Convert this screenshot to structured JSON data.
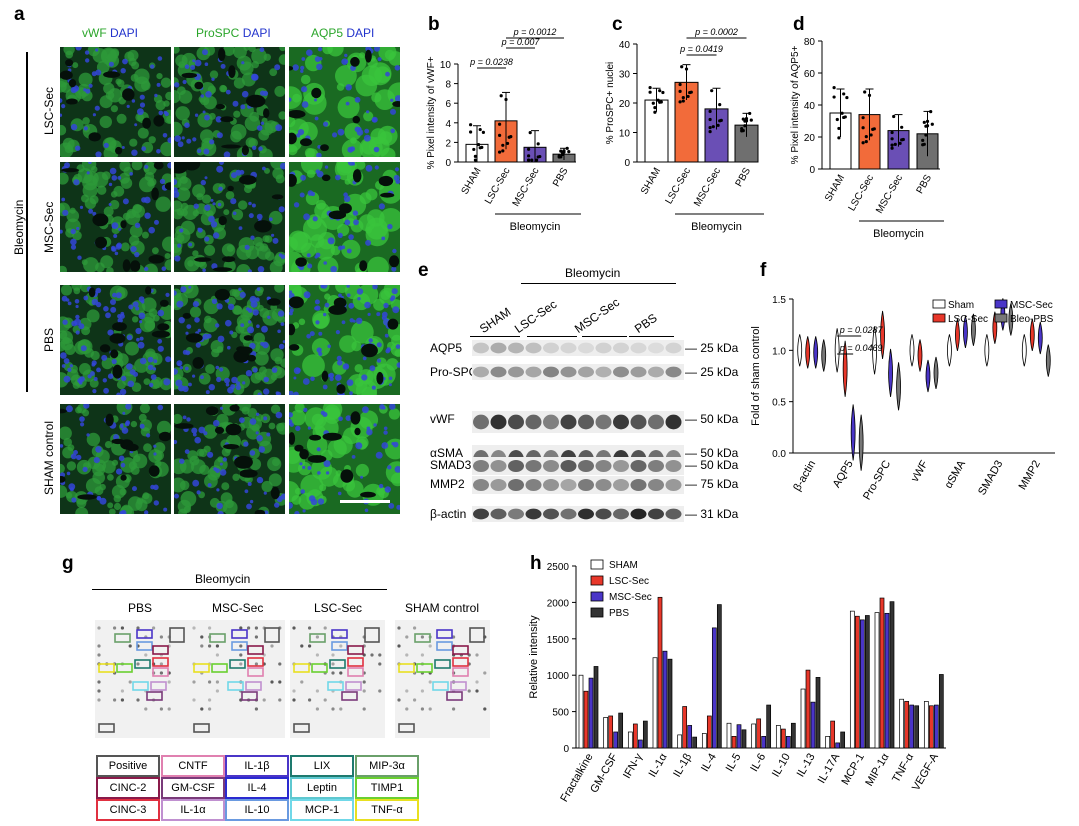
{
  "panel_letters": {
    "a": "a",
    "b": "b",
    "c": "c",
    "d": "d",
    "e": "e",
    "f": "f",
    "g": "g",
    "h": "h"
  },
  "panel_a": {
    "col_titles": [
      {
        "marker": "vWF",
        "dapi": "DAPI",
        "marker_color": "#2aa52a",
        "dapi_color": "#2233cc"
      },
      {
        "marker": "ProSPC",
        "dapi": "DAPI",
        "marker_color": "#2aa52a",
        "dapi_color": "#2233cc"
      },
      {
        "marker": "AQP5",
        "dapi": "DAPI",
        "marker_color": "#2aa52a",
        "dapi_color": "#2233cc"
      }
    ],
    "rows": [
      "LSC-Sec",
      "MSC-Sec",
      "PBS",
      "SHAM control"
    ],
    "group_label": "Bleomycin"
  },
  "chart_data": [
    {
      "id": "b",
      "type": "bar",
      "ylabel": "% Pixel intensity of vWF+",
      "categories": [
        "SHAM",
        "LSC-Sec",
        "MSC-Sec",
        "PBS"
      ],
      "values": [
        1.8,
        4.2,
        1.5,
        0.8
      ],
      "errors": [
        1.9,
        2.9,
        1.7,
        0.6
      ],
      "colors": [
        "#ffffff",
        "#f26b3a",
        "#6a4fb5",
        "#6f6f6f"
      ],
      "ylim": [
        0,
        10
      ],
      "yticks": [
        "0",
        "2",
        "4",
        "6",
        "8",
        "10"
      ],
      "group_label": "Bleomycin",
      "pvalues": [
        {
          "text": "p = 0.0238",
          "from": 0,
          "to": 1
        },
        {
          "text": "p = 0.007",
          "from": 1,
          "to": 2
        },
        {
          "text": "p = 0.0012",
          "from": 1,
          "to": 3
        }
      ]
    },
    {
      "id": "c",
      "type": "bar",
      "ylabel": "% ProSPC+ nuclei",
      "categories": [
        "SHAM",
        "LSC-Sec",
        "MSC-Sec",
        "PBS"
      ],
      "values": [
        21,
        27,
        18,
        12.5
      ],
      "errors": [
        4,
        6,
        7,
        4
      ],
      "colors": [
        "#ffffff",
        "#f26b3a",
        "#6a4fb5",
        "#6f6f6f"
      ],
      "ylim": [
        0,
        40
      ],
      "yticks": [
        "0",
        "10",
        "20",
        "30",
        "40"
      ],
      "group_label": "Bleomycin",
      "pvalues": [
        {
          "text": "p = 0.0419",
          "from": 1,
          "to": 2
        },
        {
          "text": "p = 0.0002",
          "from": 1,
          "to": 3
        }
      ]
    },
    {
      "id": "d",
      "type": "bar",
      "ylabel": "% Pixel intensity of AQP5+",
      "categories": [
        "SHAM",
        "LSC-Sec",
        "MSC-Sec",
        "PBS"
      ],
      "values": [
        35,
        34,
        24,
        22
      ],
      "errors": [
        15,
        16,
        10,
        14
      ],
      "colors": [
        "#ffffff",
        "#f26b3a",
        "#6a4fb5",
        "#6f6f6f"
      ],
      "ylim": [
        0,
        80
      ],
      "yticks": [
        "0",
        "20",
        "40",
        "60",
        "80"
      ],
      "group_label": "Bleomycin",
      "pvalues": []
    },
    {
      "id": "f",
      "type": "violin",
      "ylabel": "Fold of sham control",
      "categories": [
        "β-actin",
        "AQP5",
        "Pro-SPC",
        "vWF",
        "αSMA",
        "SMAD3",
        "MMP2"
      ],
      "series": [
        {
          "name": "Sham",
          "color": "#ffffff",
          "values": [
            1.0,
            1.0,
            1.0,
            1.0,
            1.0,
            1.0,
            1.0
          ]
        },
        {
          "name": "LSC-Sec",
          "color": "#e8372a",
          "values": [
            0.98,
            0.82,
            1.15,
            0.95,
            1.15,
            1.22,
            1.15
          ]
        },
        {
          "name": "MSC-Sec",
          "color": "#4a35c8",
          "values": [
            0.98,
            0.2,
            0.78,
            0.75,
            1.18,
            1.35,
            1.12
          ]
        },
        {
          "name": "Bleo-PBS",
          "color": "#777777",
          "values": [
            0.95,
            0.1,
            0.65,
            0.78,
            1.2,
            1.3,
            0.9
          ]
        }
      ],
      "ylim": [
        0,
        1.5
      ],
      "yticks": [
        "0.0",
        "0.5",
        "1.0",
        "1.5"
      ],
      "pvalues": [
        {
          "text": "p = 0.0287"
        },
        {
          "text": "p = 0.0469"
        }
      ]
    },
    {
      "id": "h",
      "type": "bar",
      "ylabel": "Relative intensity",
      "categories": [
        "Fractalkine",
        "GM-CSF",
        "IFN-γ",
        "IL-1α",
        "IL-1β",
        "IL-4",
        "IL-5",
        "IL-6",
        "IL-10",
        "IL-13",
        "IL-17A",
        "MCP-1",
        "MIP-1α",
        "TNF-α",
        "VEGF-A"
      ],
      "series": [
        {
          "name": "SHAM",
          "color": "#ffffff",
          "values": [
            1000,
            420,
            220,
            1240,
            180,
            200,
            340,
            330,
            310,
            810,
            160,
            1880,
            1860,
            670,
            640
          ]
        },
        {
          "name": "LSC-Sec",
          "color": "#e8372a",
          "values": [
            780,
            440,
            330,
            2070,
            570,
            440,
            160,
            400,
            260,
            1070,
            370,
            1810,
            2060,
            640,
            580
          ]
        },
        {
          "name": "MSC-Sec",
          "color": "#4a35c8",
          "values": [
            960,
            220,
            110,
            1330,
            310,
            1650,
            320,
            160,
            160,
            630,
            70,
            1760,
            1850,
            590,
            590
          ]
        },
        {
          "name": "PBS",
          "color": "#333333",
          "values": [
            1120,
            480,
            370,
            1220,
            150,
            1970,
            250,
            590,
            340,
            970,
            220,
            1820,
            2010,
            580,
            1010
          ]
        }
      ],
      "ylim": [
        0,
        2500
      ],
      "yticks": [
        "0",
        "500",
        "1000",
        "1500",
        "2000",
        "2500"
      ]
    }
  ],
  "panel_e": {
    "group_label": "Bleomycin",
    "lanes": [
      "SHAM",
      "LSC-Sec",
      "MSC-Sec",
      "PBS"
    ],
    "bands": [
      {
        "name": "AQP5",
        "kda": "25 kDa"
      },
      {
        "name": "Pro-SPC",
        "kda": "25 kDa"
      },
      {
        "name": "vWF",
        "kda": "50 kDa"
      },
      {
        "name": "αSMA",
        "kda": "50 kDa"
      },
      {
        "name": "SMAD3",
        "kda": "50 kDa"
      },
      {
        "name": "MMP2",
        "kda": "75 kDa"
      },
      {
        "name": "β-actin",
        "kda": "31 kDa"
      }
    ]
  },
  "panel_g": {
    "group_label": "Bleomycin",
    "arrays": [
      "PBS",
      "MSC-Sec",
      "LSC-Sec",
      "SHAM control"
    ],
    "legend": [
      {
        "label": "Positive",
        "color": "#555555"
      },
      {
        "label": "CNTF",
        "color": "#e080b0"
      },
      {
        "label": "IL-1β",
        "color": "#4a35c8"
      },
      {
        "label": "LIX",
        "color": "#1e7a6e"
      },
      {
        "label": "MIP-3α",
        "color": "#6aa06a"
      },
      {
        "label": "CINC-2",
        "color": "#8a1a4a"
      },
      {
        "label": "GM-CSF",
        "color": "#7a3a7a"
      },
      {
        "label": "IL-4",
        "color": "#2a2ad0"
      },
      {
        "label": "Leptin",
        "color": "#5ec8d0"
      },
      {
        "label": "TIMP1",
        "color": "#6ad030"
      },
      {
        "label": "CINC-3",
        "color": "#e03040"
      },
      {
        "label": "IL-1α",
        "color": "#c090d0"
      },
      {
        "label": "IL-10",
        "color": "#6a9ae0"
      },
      {
        "label": "MCP-1",
        "color": "#70d8e8"
      },
      {
        "label": "TNF-α",
        "color": "#e8e020"
      }
    ]
  }
}
